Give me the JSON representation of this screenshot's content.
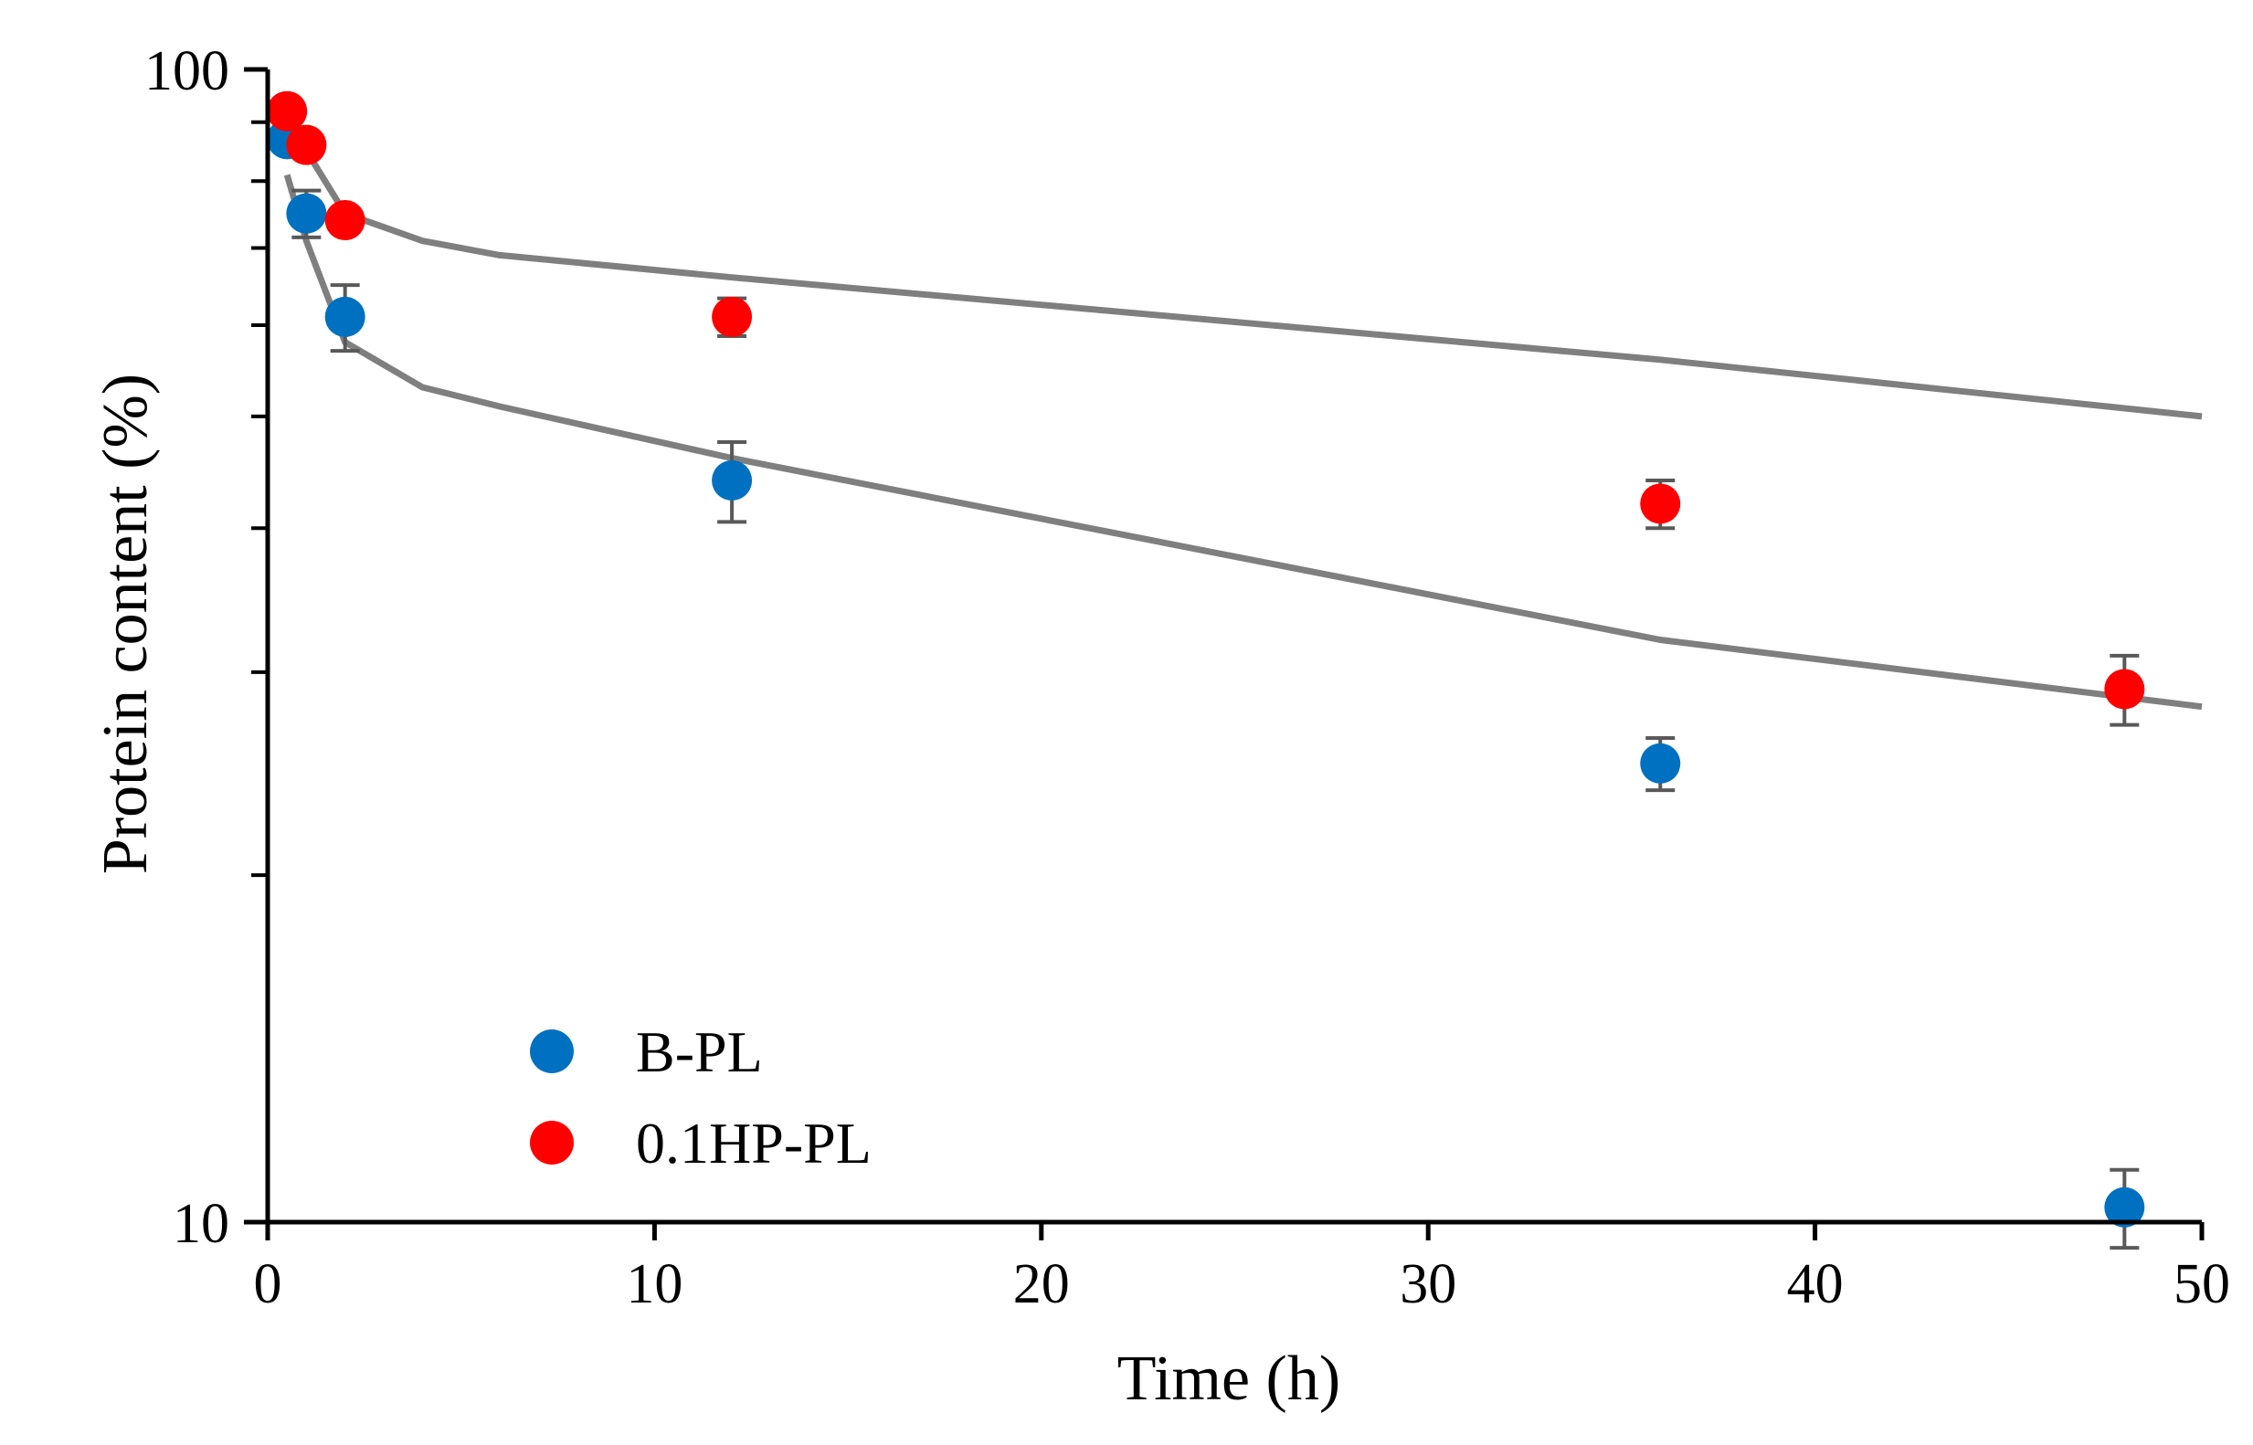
{
  "chart_data": {
    "type": "scatter",
    "title": "",
    "xlabel": "Time (h)",
    "ylabel": "Protein content (%)",
    "xlim": [
      0,
      50
    ],
    "ylim": [
      10,
      100
    ],
    "yscale": "log",
    "grid": false,
    "legend_position": "bottom-left",
    "x_ticks": [
      0,
      10,
      20,
      30,
      40,
      50
    ],
    "x_tick_labels": [
      "0",
      "10",
      "20",
      "30",
      "40",
      "50"
    ],
    "y_ticks": [
      10,
      100
    ],
    "y_tick_labels": [
      "10",
      "100"
    ],
    "y_minor_ticks": [
      20,
      30,
      40,
      50,
      60,
      70,
      80,
      90
    ],
    "series": [
      {
        "name": "B-PL",
        "color": "#0070C0",
        "x": [
          0.5,
          1,
          2,
          12,
          36,
          48
        ],
        "y": [
          87,
          75,
          61,
          44,
          25,
          10.3
        ],
        "err": [
          0,
          3.5,
          4,
          3.5,
          1.3,
          0.8
        ]
      },
      {
        "name": "0.1HP-PL",
        "color": "#FF0000",
        "x": [
          0.5,
          1,
          2,
          12,
          36,
          48
        ],
        "y": [
          92,
          86,
          74,
          61,
          42,
          29
        ],
        "err": [
          0,
          0,
          0,
          2.3,
          2,
          2
        ]
      }
    ],
    "fit_lines": [
      {
        "name": "B-PL fit",
        "color": "#7F7F7F",
        "x": [
          0.5,
          1,
          2,
          4,
          6,
          12,
          36,
          50
        ],
        "y": [
          81,
          71,
          58,
          53,
          51,
          46,
          32,
          28
        ]
      },
      {
        "name": "0.1HP-PL fit",
        "color": "#7F7F7F",
        "x": [
          0.5,
          1,
          2,
          4,
          6,
          12,
          36,
          50
        ],
        "y": [
          90,
          85,
          75,
          71,
          69,
          66,
          56,
          50
        ]
      }
    ]
  }
}
